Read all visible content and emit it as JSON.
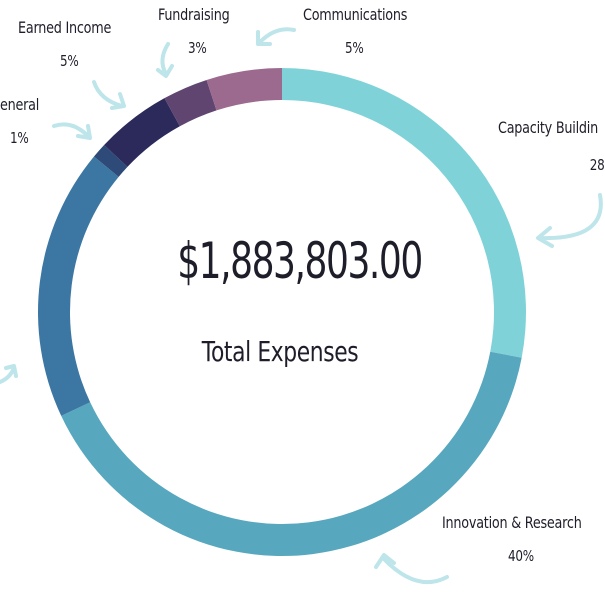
{
  "center": {
    "total": "$1,883,803.00",
    "caption": "Total Expenses"
  },
  "chart_data": {
    "type": "pie",
    "title": "",
    "categories": [
      "Capacity Building",
      "Innovation & Research",
      "",
      "General",
      "Earned Income",
      "Fundraising",
      "Communications"
    ],
    "values": [
      28,
      40,
      18,
      1,
      5,
      3,
      5
    ],
    "labels": {
      "capacity_building": {
        "name": "Capacity Buildin",
        "pct": "28"
      },
      "innovation": {
        "name": "Innovation & Research",
        "pct": "40%"
      },
      "general": {
        "name": "eneral",
        "pct": "1%"
      },
      "earned_income": {
        "name": "Earned Income",
        "pct": "5%"
      },
      "fundraising": {
        "name": "Fundraising",
        "pct": "3%"
      },
      "communications": {
        "name": "Communications",
        "pct": "5%"
      }
    },
    "colors": [
      "#7fd3d8",
      "#57a7bf",
      "#3c77a3",
      "#2d4a78",
      "#2b2a5a",
      "#5f4570",
      "#9b6a8e"
    ],
    "donut": true
  }
}
